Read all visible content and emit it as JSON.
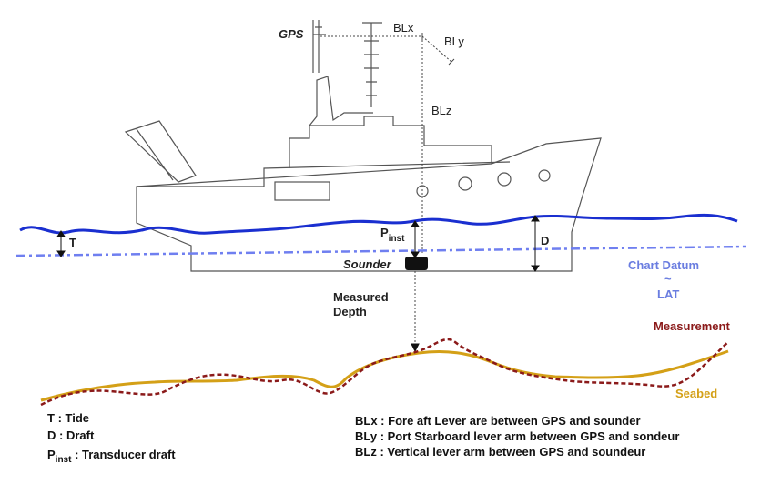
{
  "labels": {
    "gps": "GPS",
    "blx": "BLx",
    "bly": "BLy",
    "blz": "BLz",
    "tide": "T",
    "draft": "D",
    "p_main": "P",
    "p_sub": "inst",
    "sounder": "Sounder",
    "measured_depth_1": "Measured",
    "measured_depth_2": "Depth",
    "chart_datum": "Chart Datum",
    "tilde": "~",
    "lat": "LAT",
    "measurement": "Measurement",
    "seabed": "Seabed"
  },
  "legend_left": {
    "tide": {
      "key": "T",
      "sep": " : ",
      "text": "Tide"
    },
    "draft": {
      "key": "D",
      "sep": " : ",
      "text": "Draft"
    },
    "pinst": {
      "key": "P",
      "sub": "inst",
      "sep": " : ",
      "text": "Transducer draft"
    }
  },
  "legend_right": {
    "blx": {
      "key": "BLx",
      "sep": " : ",
      "text": "Fore aft Lever are between GPS and sounder"
    },
    "bly": {
      "key": "BLy",
      "sep": " : ",
      "text": "Port Starboard lever arm between GPS and sondeur"
    },
    "blz": {
      "key": "BLz",
      "sep": " : ",
      "text": "Vertical lever arm between GPS and soundeur"
    }
  },
  "colors": {
    "water": "#1a2fd0",
    "chart_datum": "#6f7ff0",
    "chart_datum_text": "#6a7de0",
    "measurement": "#8b1a1a",
    "seabed": "#d4a017",
    "ship": "#555555"
  }
}
